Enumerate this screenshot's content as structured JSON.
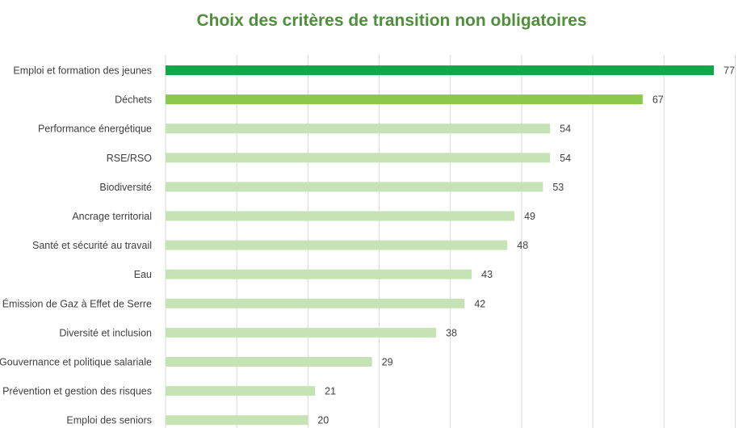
{
  "chart_data": {
    "type": "bar",
    "orientation": "horizontal",
    "title": "Choix des critères de transition non obligatoires",
    "categories": [
      "Emploi et formation des jeunes",
      "Déchets",
      "Performance énergétique",
      "RSE/RSO",
      "Biodiversité",
      "Ancrage territorial",
      "Santé et sécurité au travail",
      "Eau",
      "Émission de Gaz à Effet de Serre",
      "Diversité et inclusion",
      "Gouvernance et politique salariale",
      "Prévention et gestion des risques",
      "Emploi des seniors"
    ],
    "values": [
      77,
      67,
      54,
      54,
      53,
      49,
      48,
      43,
      42,
      38,
      29,
      21,
      20
    ],
    "bar_colors": [
      "#12a84a",
      "#8cc84b",
      "#c6e3b5",
      "#c6e3b5",
      "#c6e3b5",
      "#c6e3b5",
      "#c6e3b5",
      "#c6e3b5",
      "#c6e3b5",
      "#c6e3b5",
      "#c6e3b5",
      "#c6e3b5",
      "#c6e3b5"
    ],
    "xlim": [
      0,
      80
    ],
    "grid": true,
    "xlabel": "",
    "ylabel": ""
  }
}
